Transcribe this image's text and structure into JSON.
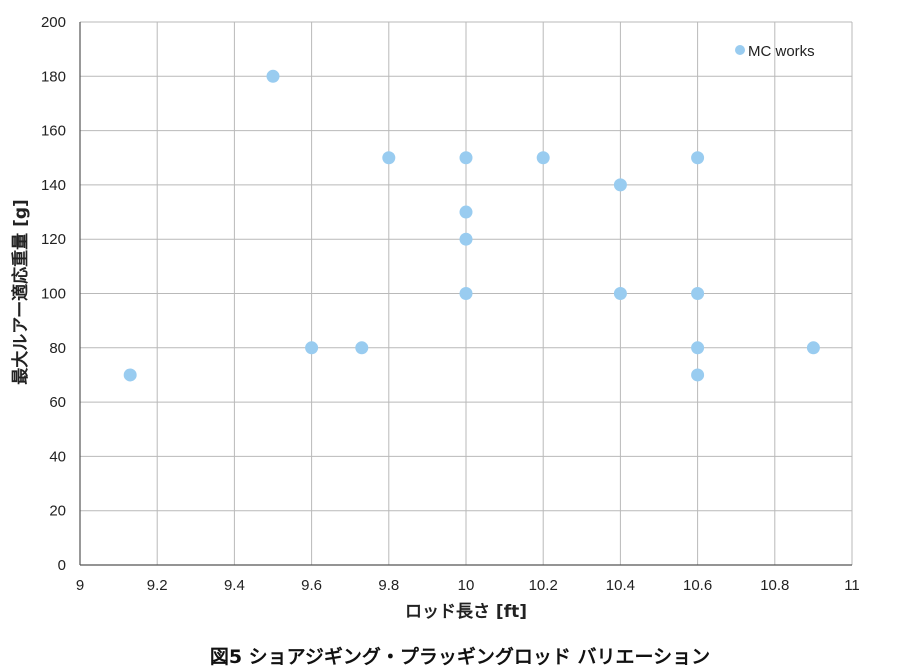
{
  "caption": "図5 ショアジギング・プラッギングロッド バリエーション",
  "colors": {
    "marker": "#99ccf0",
    "grid": "#b9b9b9",
    "axis": "#555555"
  },
  "chart_data": {
    "type": "scatter",
    "title": "",
    "xlabel": "ロッド長さ [ft]",
    "ylabel": "最大ルアー適応重量 [g]",
    "xlim": [
      9,
      11
    ],
    "ylim": [
      0,
      200
    ],
    "x_ticks": [
      "9",
      "9.2",
      "9.4",
      "9.6",
      "9.8",
      "10",
      "10.2",
      "10.4",
      "10.6",
      "10.8",
      "11"
    ],
    "y_ticks": [
      "0",
      "20",
      "40",
      "60",
      "80",
      "100",
      "120",
      "140",
      "160",
      "180",
      "200"
    ],
    "grid": true,
    "legend_position": "top-right",
    "series": [
      {
        "name": "MC works",
        "points": [
          {
            "x": 9.13,
            "y": 70
          },
          {
            "x": 9.5,
            "y": 180
          },
          {
            "x": 9.6,
            "y": 80
          },
          {
            "x": 9.73,
            "y": 80
          },
          {
            "x": 9.8,
            "y": 150
          },
          {
            "x": 10.0,
            "y": 150
          },
          {
            "x": 10.0,
            "y": 130
          },
          {
            "x": 10.0,
            "y": 120
          },
          {
            "x": 10.0,
            "y": 100
          },
          {
            "x": 10.2,
            "y": 150
          },
          {
            "x": 10.4,
            "y": 140
          },
          {
            "x": 10.4,
            "y": 100
          },
          {
            "x": 10.6,
            "y": 150
          },
          {
            "x": 10.6,
            "y": 100
          },
          {
            "x": 10.6,
            "y": 80
          },
          {
            "x": 10.6,
            "y": 70
          },
          {
            "x": 10.9,
            "y": 80
          }
        ]
      }
    ]
  }
}
